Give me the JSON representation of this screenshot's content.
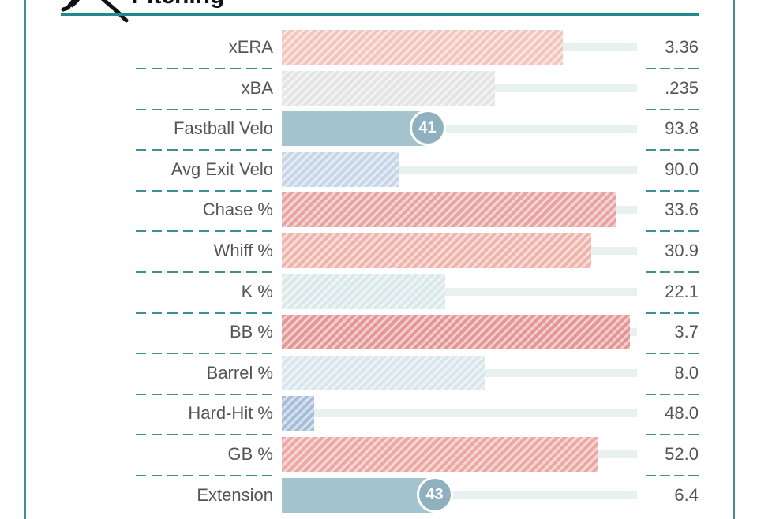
{
  "section_title": "Pitching",
  "icon": "pitcher-silhouette-icon",
  "colors": {
    "accent": "#1f8a8c",
    "track": "#e6f1f0",
    "badge": "#8fb1bf"
  },
  "metrics": [
    {
      "label": "xERA",
      "value": "3.36",
      "percentile": 79,
      "color": "#f2c6be",
      "style": "hatched"
    },
    {
      "label": "xBA",
      "value": ".235",
      "percentile": 60,
      "color": "#e4e4e4",
      "style": "hatched"
    },
    {
      "label": "Fastball Velo",
      "value": "93.8",
      "percentile": 41,
      "color": "#a3c3cf",
      "style": "solid",
      "badge": "41"
    },
    {
      "label": "Avg Exit Velo",
      "value": "90.0",
      "percentile": 33,
      "color": "#c6d5e8",
      "style": "hatched"
    },
    {
      "label": "Chase %",
      "value": "33.6",
      "percentile": 94,
      "color": "#e9a3a3",
      "style": "hatched"
    },
    {
      "label": "Whiff %",
      "value": "30.9",
      "percentile": 87,
      "color": "#efb5ac",
      "style": "hatched"
    },
    {
      "label": "K %",
      "value": "22.1",
      "percentile": 46,
      "color": "#d9e9e9",
      "style": "hatched"
    },
    {
      "label": "BB %",
      "value": "3.7",
      "percentile": 98,
      "color": "#e59797",
      "style": "hatched"
    },
    {
      "label": "Barrel %",
      "value": "8.0",
      "percentile": 57,
      "color": "#d9e7ec",
      "style": "hatched"
    },
    {
      "label": "Hard-Hit %",
      "value": "48.0",
      "percentile": 9,
      "color": "#a6bed9",
      "style": "hatched"
    },
    {
      "label": "GB %",
      "value": "52.0",
      "percentile": 89,
      "color": "#eca9a3",
      "style": "hatched"
    },
    {
      "label": "Extension",
      "value": "6.4",
      "percentile": 43,
      "color": "#a3c3cf",
      "style": "solid",
      "badge": "43"
    }
  ]
}
